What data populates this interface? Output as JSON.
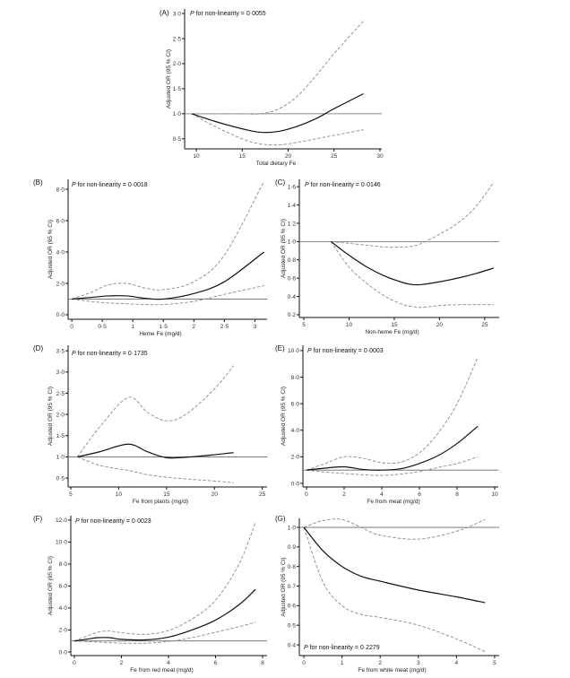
{
  "chart_data": [
    {
      "id": "A",
      "type": "line",
      "panel_label": "(A)",
      "p_italic": "P",
      "p_text": " for non-linearity = 0·0055",
      "xlabel": "Total dietary Fe",
      "ylabel": "Adjusted OR (95 % CI)",
      "xlim": [
        8.73,
        30.2
      ],
      "ylim": [
        0.3,
        3.09
      ],
      "xticks": [
        10,
        15,
        20,
        25,
        30
      ],
      "xtick_labels": [
        "10",
        "15",
        "20",
        "25",
        "30"
      ],
      "yticks": [
        0.5,
        1,
        1.5,
        2,
        2.5,
        3
      ],
      "ytick_labels": [
        "0·5",
        "1·0",
        "1·5",
        "2·0",
        "2·5",
        "3·0"
      ],
      "reference": 1,
      "x": [
        9.5,
        12,
        15,
        17,
        19,
        21,
        23,
        25,
        28.2
      ],
      "or": [
        1.0,
        0.85,
        0.7,
        0.63,
        0.65,
        0.75,
        0.9,
        1.1,
        1.4
      ],
      "upper": [
        1,
        1,
        1,
        1.0,
        1.1,
        1.35,
        1.75,
        2.2,
        2.85
      ],
      "lower": [
        1,
        0.75,
        0.5,
        0.4,
        0.38,
        0.43,
        0.5,
        0.57,
        0.68
      ]
    },
    {
      "id": "B",
      "type": "line",
      "panel_label": "(B)",
      "p_italic": "P",
      "p_text": " for non-linearity = 0·0018",
      "xlabel": "Heme Fe (mg/d)",
      "ylabel": "Adjusted OR (95 % CI)",
      "xlim": [
        -0.06,
        3.2
      ],
      "ylim": [
        -0.29,
        8.63
      ],
      "xticks": [
        0,
        0.5,
        1,
        1.5,
        2,
        2.5,
        3
      ],
      "xtick_labels": [
        "0",
        "0·5",
        "1",
        "1·5",
        "2",
        "2·5",
        "3"
      ],
      "yticks": [
        0,
        2,
        4,
        6,
        8
      ],
      "ytick_labels": [
        "0·0",
        "2·0",
        "4·0",
        "6·0",
        "8·0"
      ],
      "reference": 1,
      "x": [
        0,
        0.3,
        0.6,
        0.9,
        1.2,
        1.5,
        2,
        2.5,
        3.15
      ],
      "or": [
        1,
        1.1,
        1.2,
        1.2,
        1.05,
        1.0,
        1.35,
        2.1,
        4.0
      ],
      "upper": [
        1,
        1.4,
        1.9,
        2.0,
        1.7,
        1.6,
        2.1,
        3.8,
        8.5
      ],
      "lower": [
        1,
        0.85,
        0.75,
        0.7,
        0.65,
        0.65,
        0.85,
        1.3,
        1.85
      ]
    },
    {
      "id": "C",
      "type": "line",
      "panel_label": "(C)",
      "p_italic": "P",
      "p_text": " for non-linearity = 0·0146",
      "xlabel": "Non-heme Fe (mg/d)",
      "ylabel": "Adjusted OR (95 % CI)",
      "xlim": [
        4.5,
        26.6
      ],
      "ylim": [
        0.17,
        1.68
      ],
      "xticks": [
        5,
        10,
        15,
        20,
        25
      ],
      "xtick_labels": [
        "5",
        "10",
        "15",
        "20",
        "25"
      ],
      "yticks": [
        0.2,
        0.4,
        0.6,
        0.8,
        1.0,
        1.2,
        1.4,
        1.6
      ],
      "ytick_labels": [
        "0·2",
        "0·4",
        "0·6",
        "0·8",
        "1·0",
        "1·2",
        "1·4",
        "1·6"
      ],
      "reference": 1,
      "x": [
        8,
        10,
        12,
        14,
        16,
        17,
        18,
        20,
        22,
        24,
        26
      ],
      "or": [
        1,
        0.85,
        0.72,
        0.62,
        0.55,
        0.53,
        0.53,
        0.56,
        0.6,
        0.65,
        0.71
      ],
      "upper": [
        1,
        0.98,
        0.96,
        0.94,
        0.94,
        0.95,
        0.98,
        1.08,
        1.2,
        1.38,
        1.65
      ],
      "lower": [
        1,
        0.72,
        0.54,
        0.4,
        0.31,
        0.29,
        0.28,
        0.3,
        0.31,
        0.31,
        0.31
      ]
    },
    {
      "id": "D",
      "type": "line",
      "panel_label": "(D)",
      "p_italic": "P",
      "p_text": " for non-linearity = 0·1735",
      "xlabel": "Fe from plants (mg/d)",
      "ylabel": "Adjusted OR (95 % CI)",
      "xlim": [
        4.72,
        25.5
      ],
      "ylim": [
        0.29,
        3.63
      ],
      "xticks": [
        5,
        10,
        15,
        20,
        25
      ],
      "xtick_labels": [
        "5",
        "10",
        "15",
        "20",
        "25"
      ],
      "yticks": [
        0.5,
        1,
        1.5,
        2,
        2.5,
        3,
        3.5
      ],
      "ytick_labels": [
        "0·5",
        "1·0",
        "1·5",
        "2·0",
        "2·5",
        "3·0",
        "3·5"
      ],
      "reference": 1,
      "x": [
        5.7,
        8,
        11,
        13,
        15,
        17,
        20,
        22
      ],
      "or": [
        1,
        1.12,
        1.3,
        1.12,
        0.98,
        0.99,
        1.05,
        1.1
      ],
      "upper": [
        1,
        1.7,
        2.4,
        2.05,
        1.85,
        2.0,
        2.6,
        3.15
      ],
      "lower": [
        1,
        0.8,
        0.68,
        0.58,
        0.52,
        0.48,
        0.43,
        0.39
      ]
    },
    {
      "id": "E",
      "type": "line",
      "panel_label": "(E)",
      "p_italic": "P",
      "p_text": " for non-linearity = 0·0003",
      "xlabel": "Fe from meat (mg/d)",
      "ylabel": "Adjusted OR (95 % CI)",
      "xlim": [
        -0.19,
        10.19
      ],
      "ylim": [
        -0.27,
        10.4
      ],
      "xticks": [
        0,
        2,
        4,
        6,
        8,
        10
      ],
      "xtick_labels": [
        "0",
        "2",
        "4",
        "6",
        "8",
        "10"
      ],
      "yticks": [
        0,
        2,
        4,
        6,
        8,
        10
      ],
      "ytick_labels": [
        "0·0",
        "2·0",
        "4·0",
        "6·0",
        "8·0",
        "10·0"
      ],
      "reference": 1,
      "x": [
        0,
        1,
        2,
        3,
        4,
        5,
        6,
        7,
        8,
        9.1
      ],
      "or": [
        1,
        1.15,
        1.25,
        1.05,
        1.0,
        1.1,
        1.5,
        2.1,
        3.0,
        4.3
      ],
      "upper": [
        1,
        1.5,
        2.0,
        1.9,
        1.55,
        1.6,
        2.3,
        3.8,
        6.0,
        9.5
      ],
      "lower": [
        1,
        0.85,
        0.75,
        0.65,
        0.6,
        0.7,
        0.9,
        1.2,
        1.5,
        2.0
      ]
    },
    {
      "id": "F",
      "type": "line",
      "panel_label": "(F)",
      "p_italic": "P",
      "p_text": " for non-linearity = 0·0023",
      "xlabel": "Fe from red meat (mg/d)",
      "ylabel": "Adjusted OR (95 % CI)",
      "xlim": [
        -0.15,
        8.19
      ],
      "ylim": [
        -0.33,
        12.4
      ],
      "xticks": [
        0,
        2,
        4,
        6,
        8
      ],
      "xtick_labels": [
        "0",
        "2",
        "4",
        "6",
        "8"
      ],
      "yticks": [
        0,
        2,
        4,
        6,
        8,
        10,
        12
      ],
      "ytick_labels": [
        "0·0",
        "2·0",
        "4·0",
        "6·0",
        "8·0",
        "10·0",
        "12·0"
      ],
      "reference": 1,
      "x": [
        0,
        0.5,
        1,
        1.5,
        2,
        3,
        4,
        5,
        6,
        7,
        7.7
      ],
      "or": [
        1,
        1.15,
        1.3,
        1.3,
        1.15,
        1.1,
        1.35,
        2.0,
        2.9,
        4.3,
        5.7
      ],
      "upper": [
        1,
        1.4,
        1.8,
        1.9,
        1.75,
        1.6,
        1.95,
        3.0,
        4.7,
        8.0,
        11.8
      ],
      "lower": [
        1,
        0.95,
        0.9,
        0.85,
        0.8,
        0.8,
        0.95,
        1.3,
        1.8,
        2.3,
        2.7
      ]
    },
    {
      "id": "G",
      "type": "line",
      "panel_label": "(G)",
      "p_italic": "P",
      "p_text": " for non-linearity = 0·2279",
      "xlabel": "Fe from white meat (mg/d)",
      "ylabel": "Adjusted OR (95 % CI)",
      "xlim": [
        -0.12,
        5.12
      ],
      "ylim": [
        0.345,
        1.046
      ],
      "xticks": [
        0,
        1,
        2,
        3,
        4,
        5
      ],
      "xtick_labels": [
        "0",
        "1",
        "2",
        "3",
        "4",
        "5"
      ],
      "yticks": [
        0.4,
        0.5,
        0.6,
        0.7,
        0.8,
        0.9,
        1.0
      ],
      "ytick_labels": [
        "0·4",
        "0·5",
        "0·6",
        "0·7",
        "0·8",
        "0·9",
        "1·0"
      ],
      "reference": 1,
      "x": [
        0,
        0.5,
        1,
        1.5,
        2,
        3,
        4,
        4.75
      ],
      "or": [
        1,
        0.88,
        0.8,
        0.75,
        0.725,
        0.68,
        0.645,
        0.615
      ],
      "upper": [
        1,
        1.035,
        1.04,
        1.0,
        0.96,
        0.94,
        0.98,
        1.04
      ],
      "lower": [
        1,
        0.72,
        0.6,
        0.555,
        0.54,
        0.5,
        0.43,
        0.365
      ]
    }
  ],
  "colors": {
    "estimate": "#111111",
    "ci": "#8a8a8a",
    "reference": "#666666",
    "axis": "#111111"
  }
}
